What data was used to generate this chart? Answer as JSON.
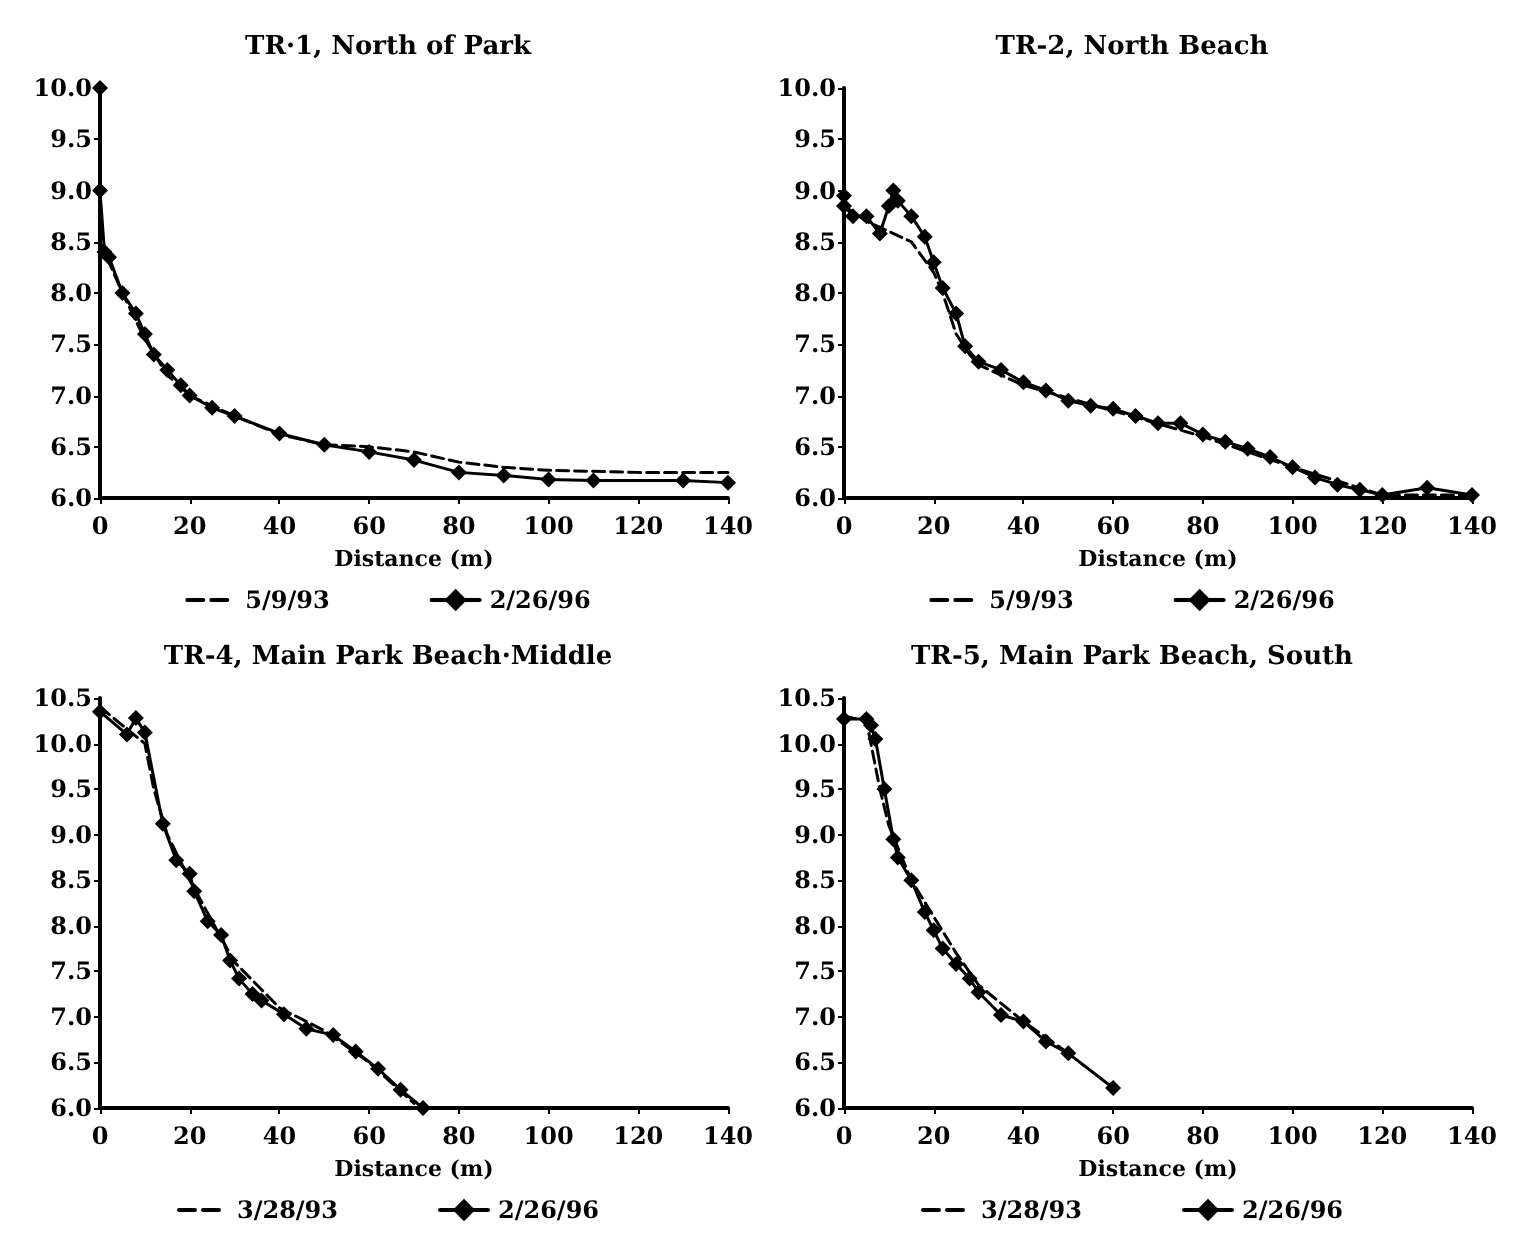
{
  "chart_data": [
    {
      "type": "line",
      "title": "TR·1, North of Park",
      "xlabel": "Distance (m)",
      "xlim": [
        0,
        140
      ],
      "xticks": [
        0,
        20,
        40,
        60,
        80,
        100,
        120,
        140
      ],
      "ylim": [
        6.0,
        10.0
      ],
      "yticks": [
        {
          "value": 6,
          "label": "6.0"
        },
        {
          "value": 6.5,
          "label": "6.5"
        },
        {
          "value": 7,
          "label": "7.0"
        },
        {
          "value": 7.5,
          "label": "7.5"
        },
        {
          "value": 8,
          "label": "8.0"
        },
        {
          "value": 8.5,
          "label": "8.5"
        },
        {
          "value": 9,
          "label": "9.0"
        },
        {
          "value": 9.5,
          "label": "9.5"
        },
        {
          "value": 10,
          "label": "10.0"
        }
      ],
      "grid": false,
      "legend": "bottom",
      "series": [
        {
          "name": "5/9/93",
          "color": "#000000",
          "marker": "none",
          "line_style": "dashed",
          "x": [
            0,
            2,
            5,
            10,
            15,
            20,
            30,
            40,
            50,
            60,
            70,
            80,
            90,
            100,
            120,
            140
          ],
          "values": [
            8.5,
            8.3,
            8.0,
            7.55,
            7.2,
            7.0,
            6.8,
            6.62,
            6.52,
            6.5,
            6.45,
            6.35,
            6.3,
            6.27,
            6.25,
            6.25
          ]
        },
        {
          "name": "2/26/96",
          "color": "#000000",
          "marker": "diamond",
          "line_style": "solid",
          "x": [
            0,
            0,
            1,
            2,
            5,
            8,
            10,
            12,
            15,
            18,
            20,
            25,
            30,
            40,
            50,
            60,
            70,
            80,
            90,
            100,
            110,
            130,
            140
          ],
          "values": [
            10.0,
            9.0,
            8.4,
            8.35,
            8.0,
            7.8,
            7.6,
            7.4,
            7.25,
            7.1,
            7.0,
            6.88,
            6.8,
            6.63,
            6.52,
            6.45,
            6.37,
            6.25,
            6.22,
            6.18,
            6.17,
            6.17,
            6.15
          ]
        }
      ]
    },
    {
      "type": "line",
      "title": "TR-2, North Beach",
      "xlabel": "Distance (m)",
      "xlim": [
        0,
        140
      ],
      "xticks": [
        0,
        20,
        40,
        60,
        80,
        100,
        120,
        140
      ],
      "ylim": [
        6.0,
        10.0
      ],
      "yticks": [
        {
          "value": 6,
          "label": "6.0"
        },
        {
          "value": 6.5,
          "label": "6.5"
        },
        {
          "value": 7,
          "label": "7.0"
        },
        {
          "value": 7.5,
          "label": "7.5"
        },
        {
          "value": 8,
          "label": "8.0"
        },
        {
          "value": 8.5,
          "label": "8.5"
        },
        {
          "value": 9,
          "label": "9.0"
        },
        {
          "value": 9.5,
          "label": "9.5"
        },
        {
          "value": 10,
          "label": "10.0"
        }
      ],
      "grid": false,
      "legend": "bottom",
      "series": [
        {
          "name": "5/9/93",
          "color": "#000000",
          "marker": "none",
          "line_style": "dashed",
          "x": [
            0,
            5,
            10,
            15,
            20,
            22,
            25,
            28,
            30,
            40,
            60,
            80,
            100,
            120,
            140
          ],
          "values": [
            8.85,
            8.7,
            8.6,
            8.5,
            8.2,
            8.0,
            7.6,
            7.4,
            7.3,
            7.1,
            6.85,
            6.6,
            6.3,
            6.03,
            6.03
          ]
        },
        {
          "name": "2/26/96",
          "color": "#000000",
          "marker": "diamond",
          "line_style": "solid",
          "x": [
            0,
            0,
            2,
            5,
            8,
            10,
            11,
            12,
            15,
            18,
            20,
            22,
            25,
            27,
            30,
            35,
            40,
            45,
            50,
            55,
            60,
            65,
            70,
            75,
            80,
            85,
            90,
            95,
            100,
            105,
            110,
            115,
            120,
            130,
            140
          ],
          "values": [
            8.95,
            8.85,
            8.75,
            8.75,
            8.58,
            8.85,
            9.0,
            8.9,
            8.75,
            8.55,
            8.3,
            8.05,
            7.8,
            7.48,
            7.33,
            7.25,
            7.13,
            7.05,
            6.95,
            6.9,
            6.87,
            6.8,
            6.73,
            6.73,
            6.62,
            6.55,
            6.48,
            6.4,
            6.3,
            6.2,
            6.13,
            6.08,
            6.03,
            6.1,
            6.03
          ]
        }
      ]
    },
    {
      "type": "line",
      "title": "TR-4, Main Park Beach·Middle",
      "xlabel": "Distance (m)",
      "xlim": [
        0,
        140
      ],
      "xticks": [
        0,
        20,
        40,
        60,
        80,
        100,
        120,
        140
      ],
      "ylim": [
        6.0,
        10.5
      ],
      "yticks": [
        {
          "value": 6,
          "label": "6.0"
        },
        {
          "value": 6.5,
          "label": "6.5"
        },
        {
          "value": 7,
          "label": "7.0"
        },
        {
          "value": 7.5,
          "label": "7.5"
        },
        {
          "value": 8,
          "label": "8.0"
        },
        {
          "value": 8.5,
          "label": "8.5"
        },
        {
          "value": 9,
          "label": "9.0"
        },
        {
          "value": 9.5,
          "label": "9.5"
        },
        {
          "value": 10,
          "label": "10.0"
        },
        {
          "value": 10.5,
          "label": "10.5"
        }
      ],
      "grid": false,
      "legend": "bottom",
      "series": [
        {
          "name": "3/28/93",
          "color": "#000000",
          "marker": "none",
          "line_style": "dashed",
          "x": [
            0,
            5,
            10,
            12,
            15,
            20,
            30,
            40,
            50,
            60,
            70
          ],
          "values": [
            10.4,
            10.2,
            10.0,
            9.5,
            9.0,
            8.5,
            7.6,
            7.1,
            6.85,
            6.5,
            6.05
          ]
        },
        {
          "name": "2/26/96",
          "color": "#000000",
          "marker": "diamond",
          "line_style": "solid",
          "x": [
            0,
            6,
            8,
            10,
            14,
            17,
            20,
            21,
            24,
            27,
            29,
            31,
            34,
            36,
            41,
            46,
            52,
            57,
            62,
            67,
            72
          ],
          "values": [
            10.35,
            10.1,
            10.28,
            10.12,
            9.12,
            8.72,
            8.57,
            8.38,
            8.05,
            7.9,
            7.62,
            7.42,
            7.25,
            7.18,
            7.03,
            6.87,
            6.8,
            6.62,
            6.43,
            6.2,
            6.0
          ]
        }
      ]
    },
    {
      "type": "line",
      "title": "TR-5, Main Park Beach, South",
      "xlabel": "Distance (m)",
      "xlim": [
        0,
        140
      ],
      "xticks": [
        0,
        20,
        40,
        60,
        80,
        100,
        120,
        140
      ],
      "ylim": [
        6.0,
        10.5
      ],
      "yticks": [
        {
          "value": 6,
          "label": "6.0"
        },
        {
          "value": 6.5,
          "label": "6.5"
        },
        {
          "value": 7,
          "label": "7.0"
        },
        {
          "value": 7.5,
          "label": "7.5"
        },
        {
          "value": 8,
          "label": "8.0"
        },
        {
          "value": 8.5,
          "label": "8.5"
        },
        {
          "value": 9,
          "label": "9.0"
        },
        {
          "value": 9.5,
          "label": "9.5"
        },
        {
          "value": 10,
          "label": "10.0"
        },
        {
          "value": 10.5,
          "label": "10.5"
        }
      ],
      "grid": false,
      "legend": "bottom",
      "series": [
        {
          "name": "3/28/93",
          "color": "#000000",
          "marker": "none",
          "line_style": "dashed",
          "x": [
            0,
            5,
            8,
            10,
            15,
            20,
            25,
            30,
            40,
            50
          ],
          "values": [
            10.3,
            10.25,
            9.5,
            9.1,
            8.5,
            8.1,
            7.7,
            7.35,
            6.95,
            6.6
          ]
        },
        {
          "name": "2/26/96",
          "color": "#000000",
          "marker": "diamond",
          "line_style": "solid",
          "x": [
            0,
            5,
            6,
            7,
            9,
            11,
            12,
            15,
            18,
            20,
            22,
            25,
            28,
            30,
            35,
            40,
            45,
            50,
            60
          ],
          "values": [
            10.27,
            10.27,
            10.2,
            10.05,
            9.5,
            8.95,
            8.75,
            8.5,
            8.15,
            7.95,
            7.75,
            7.58,
            7.42,
            7.27,
            7.02,
            6.95,
            6.73,
            6.6,
            6.22
          ]
        }
      ]
    }
  ]
}
